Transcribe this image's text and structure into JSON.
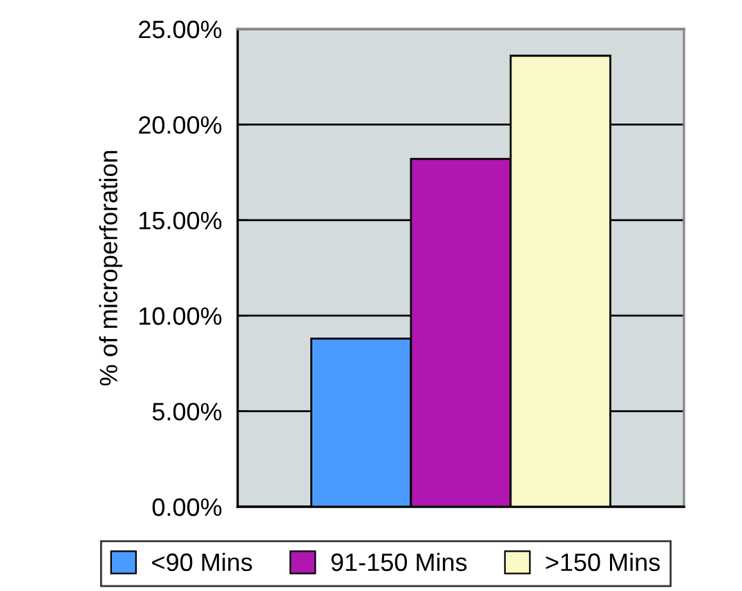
{
  "chart_data": {
    "type": "bar",
    "ylabel": "% of microperforation",
    "categories": [
      null
    ],
    "series": [
      {
        "name": "<90 Mins",
        "color": "#4a9aff",
        "values": [
          8.8
        ]
      },
      {
        "name": "91-150 Mins",
        "color": "#b016b0",
        "values": [
          18.2
        ]
      },
      {
        "name": ">150 Mins",
        "color": "#f9f9c6",
        "values": [
          23.6
        ]
      }
    ],
    "ylim": [
      0,
      25
    ],
    "yticks": [
      {
        "value": 0,
        "label": "0.00%"
      },
      {
        "value": 5,
        "label": "5.00%"
      },
      {
        "value": 10,
        "label": "10.00%"
      },
      {
        "value": 15,
        "label": "15.00%"
      },
      {
        "value": 20,
        "label": "20.00%"
      },
      {
        "value": 25,
        "label": "25.00%"
      }
    ],
    "grid": "y",
    "legend": "bottom"
  }
}
